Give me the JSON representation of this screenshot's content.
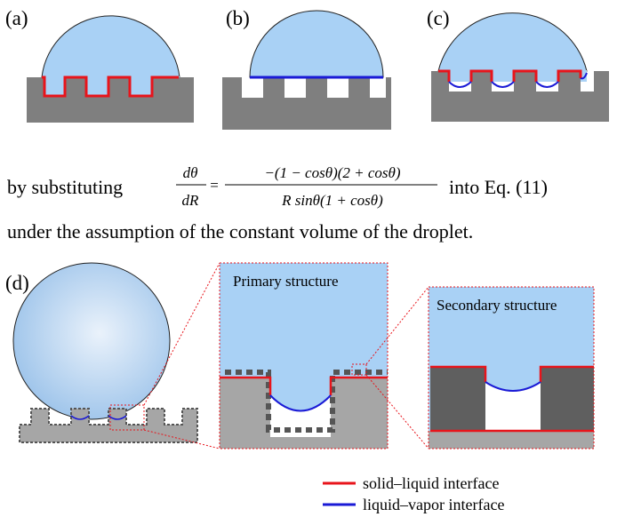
{
  "panels": {
    "a": "(a)",
    "b": "(b)",
    "c": "(c)",
    "d": "(d)"
  },
  "text": {
    "line1_start": "by substituting",
    "line1_end": "into Eq. (11)",
    "line2": "under the assumption of the constant volume of the droplet."
  },
  "equation": {
    "lhs_num": "dθ",
    "lhs_den": "dR",
    "equals": "=",
    "rhs_num": "−(1 − cosθ)(2 + cosθ)",
    "rhs_den": "R sinθ(1 + cosθ)"
  },
  "insets": {
    "primary": "Primary structure",
    "secondary": "Secondary structure"
  },
  "legend": [
    {
      "label": "solid–liquid interface",
      "color": "#e8141b"
    },
    {
      "label": "liquid–vapor interface",
      "color": "#1a1ad6"
    }
  ]
}
